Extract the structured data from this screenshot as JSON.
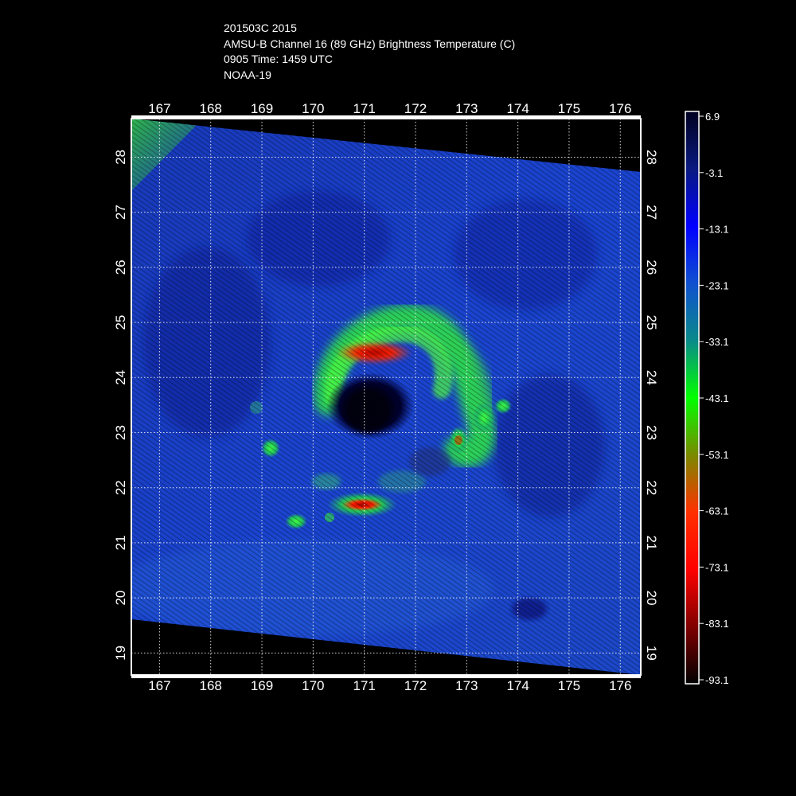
{
  "header": {
    "line1": "201503C 2015",
    "line2": "AMSU-B Channel 16 (89 GHz) Brightness Temperature (C)",
    "line3": "0905 Time: 1459 UTC",
    "line4": "NOAA-19"
  },
  "map": {
    "lon_ticks": [
      "167",
      "168",
      "169",
      "170",
      "171",
      "172",
      "173",
      "174",
      "175",
      "176"
    ],
    "lat_ticks": [
      "28",
      "27",
      "26",
      "25",
      "24",
      "23",
      "22",
      "21",
      "20",
      "19"
    ],
    "lon_range": [
      166.45,
      176.4
    ],
    "lat_range": [
      18.6,
      28.7
    ],
    "grid": true,
    "colors": {
      "background": "#000000",
      "swath_base": "#1a3cc8",
      "grid": "#ffffff"
    }
  },
  "colorbar": {
    "labels": [
      "6.9",
      "-3.1",
      "-13.1",
      "-23.1",
      "-33.1",
      "-43.1",
      "-53.1",
      "-63.1",
      "-73.1",
      "-83.1",
      "-93.1"
    ],
    "range": [
      6.9,
      -93.1
    ],
    "colors": [
      "#000020",
      "#0a1a80",
      "#0000ff",
      "#1050d0",
      "#0a8a8a",
      "#00ff00",
      "#7a8a00",
      "#ff3000",
      "#ff0000",
      "#800000",
      "#000000"
    ]
  }
}
